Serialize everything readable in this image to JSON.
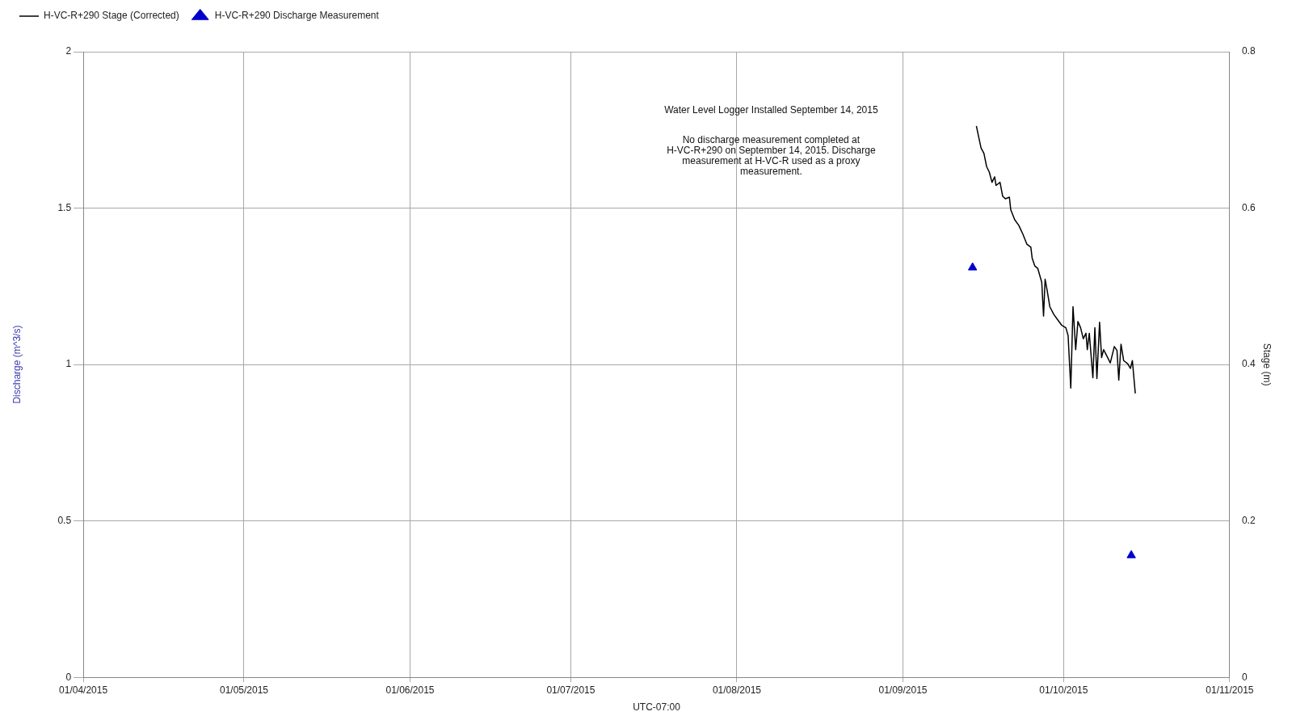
{
  "chart_data": {
    "type": "line",
    "xlabel": "UTC-07:00",
    "ylabel": "Discharge (m^3/s)",
    "y2label": "Stage (m)",
    "annotations": [
      "Water Level Logger Installed September 14, 2015",
      "No discharge measurement completed at H-VC-R+290 on September 14, 2015. Discharge measurement at H-VC-R used as a proxy measurement."
    ],
    "xlim": [
      "2015-04-01",
      "2015-11-01"
    ],
    "xticks": [
      {
        "value": "2015-04-01",
        "label": "01/04/2015"
      },
      {
        "value": "2015-05-01",
        "label": "01/05/2015"
      },
      {
        "value": "2015-06-01",
        "label": "01/06/2015"
      },
      {
        "value": "2015-07-01",
        "label": "01/07/2015"
      },
      {
        "value": "2015-08-01",
        "label": "01/08/2015"
      },
      {
        "value": "2015-09-01",
        "label": "01/09/2015"
      },
      {
        "value": "2015-10-01",
        "label": "01/10/2015"
      },
      {
        "value": "2015-11-01",
        "label": "01/11/2015"
      }
    ],
    "ylim": [
      0,
      2
    ],
    "yticks": [
      0,
      0.5,
      1,
      1.5,
      2
    ],
    "y2lim": [
      0,
      0.8
    ],
    "y2ticks": [
      0,
      0.2,
      0.4,
      0.6,
      0.8
    ],
    "grid": true,
    "legend": "top left",
    "series": [
      {
        "name": "H-VC-R+290 Stage (Corrected)",
        "type": "line",
        "axis": "y2",
        "color": "#000000",
        "marker": "none",
        "line_style": "solid",
        "x": [
          "2015-09-14T17:00",
          "2015-09-15T02:00",
          "2015-09-15T14:00",
          "2015-09-16T03:00",
          "2015-09-16T15:00",
          "2015-09-17T03:00",
          "2015-09-17T15:00",
          "2015-09-18T03:00",
          "2015-09-18T09:00",
          "2015-09-19T03:00",
          "2015-09-19T15:00",
          "2015-09-20T03:00",
          "2015-09-20T21:00",
          "2015-09-21T03:00",
          "2015-09-21T21:00",
          "2015-09-22T15:00",
          "2015-09-23T09:00",
          "2015-09-24T03:00",
          "2015-09-24T21:00",
          "2015-09-25T03:00",
          "2015-09-25T15:00",
          "2015-09-26T04:00",
          "2015-09-26T22:00",
          "2015-09-27T06:00",
          "2015-09-27T13:00",
          "2015-09-27T22:00",
          "2015-09-28T10:00",
          "2015-09-29T04:00",
          "2015-09-29T22:00",
          "2015-09-30T16:00",
          "2015-10-01T10:00",
          "2015-10-01T20:00",
          "2015-10-02T08:00",
          "2015-10-02T18:00",
          "2015-10-03T06:00",
          "2015-10-03T16:00",
          "2015-10-04T04:00",
          "2015-10-04T16:00",
          "2015-10-05T04:00",
          "2015-10-05T10:00",
          "2015-10-05T19:00",
          "2015-10-06T11:00",
          "2015-10-06T20:00",
          "2015-10-07T05:00",
          "2015-10-07T17:00",
          "2015-10-08T02:00",
          "2015-10-08T11:00",
          "2015-10-09T05:00",
          "2015-10-09T17:00",
          "2015-10-10T11:00",
          "2015-10-10T23:00",
          "2015-10-11T07:00",
          "2015-10-11T17:00",
          "2015-10-12T05:00",
          "2015-10-12T23:00",
          "2015-10-13T11:00",
          "2015-10-13T20:00",
          "2015-10-14T09:00"
        ],
        "values": [
          0.705,
          0.693,
          0.677,
          0.67,
          0.653,
          0.646,
          0.633,
          0.64,
          0.629,
          0.633,
          0.615,
          0.612,
          0.614,
          0.598,
          0.585,
          0.578,
          0.567,
          0.554,
          0.55,
          0.536,
          0.526,
          0.523,
          0.505,
          0.462,
          0.509,
          0.495,
          0.474,
          0.464,
          0.457,
          0.45,
          0.447,
          0.437,
          0.37,
          0.474,
          0.419,
          0.455,
          0.447,
          0.433,
          0.44,
          0.419,
          0.44,
          0.383,
          0.447,
          0.382,
          0.454,
          0.409,
          0.419,
          0.409,
          0.402,
          0.423,
          0.418,
          0.38,
          0.426,
          0.405,
          0.401,
          0.395,
          0.405,
          0.363
        ]
      },
      {
        "name": "H-VC-R+290 Discharge Measurement",
        "type": "scatter",
        "axis": "y",
        "color": "#0000cc",
        "marker": "triangle",
        "x": [
          "2015-09-14",
          "2015-10-13T15:00"
        ],
        "values": [
          1.31,
          0.39
        ]
      }
    ]
  }
}
